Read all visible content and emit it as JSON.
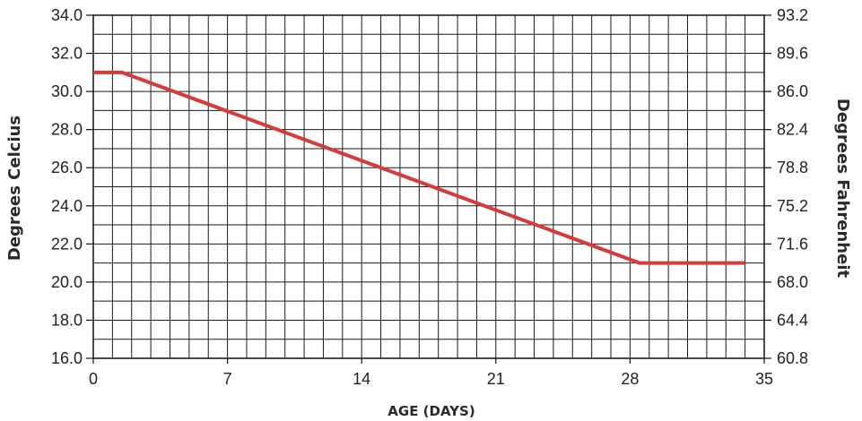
{
  "chart_data": {
    "type": "line",
    "title": "",
    "xlabel": "AGE (DAYS)",
    "ylabel": "Degrees Celcius",
    "y2label": "Degrees Fahrenheit",
    "xlim": [
      0,
      35
    ],
    "ylim": [
      16,
      34
    ],
    "xticks": [
      "0",
      "7",
      "14",
      "21",
      "28",
      "35"
    ],
    "yticks": [
      "16.0",
      "18.0",
      "20.0",
      "22.0",
      "24.0",
      "26.0",
      "28.0",
      "30.0",
      "32.0",
      "34.0"
    ],
    "y2ticks": [
      "60.8",
      "64.4",
      "68.0",
      "71.6",
      "75.2",
      "78.8",
      "82.4",
      "86.0",
      "89.6",
      "93.2"
    ],
    "grid": true,
    "series": [
      {
        "color": "#d63a3a",
        "x": [
          0,
          1.5,
          28.5,
          34
        ],
        "y": [
          31.0,
          31.0,
          21.0,
          21.0
        ]
      }
    ]
  }
}
